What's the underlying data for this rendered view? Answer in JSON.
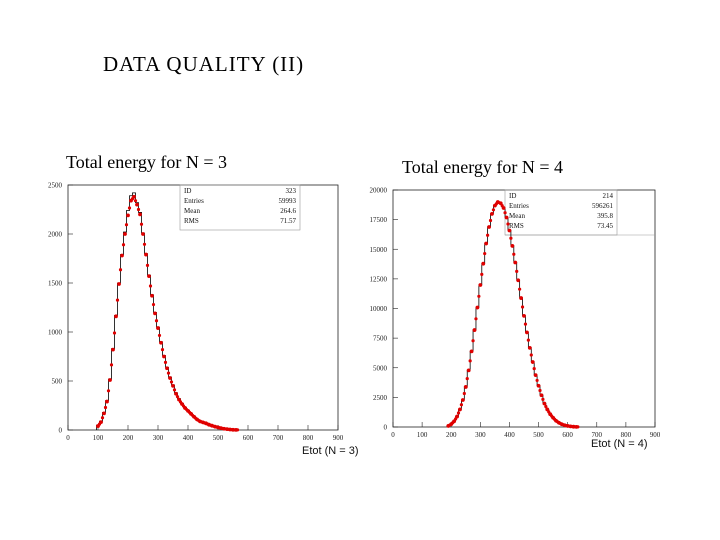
{
  "page": {
    "title": "DATA QUALITY (II)"
  },
  "panels": [
    {
      "title": "Total energy for N = 3",
      "xlabel": "Etot (N = 3)"
    },
    {
      "title": "Total energy for N = 4",
      "xlabel": "Etot (N = 4)"
    }
  ],
  "chart_data": [
    {
      "type": "histogram",
      "title": "Total energy for N = 3",
      "xlabel": "Etot (N = 3)",
      "ylabel": "",
      "xlim": [
        0,
        900
      ],
      "ylim": [
        0,
        2500
      ],
      "x_ticks": [
        0,
        100,
        200,
        300,
        400,
        500,
        600,
        700,
        800,
        900
      ],
      "y_ticks": [
        0,
        500,
        1000,
        1500,
        2000,
        2500
      ],
      "x_tick_labels": [
        "0",
        "100",
        "200",
        "300",
        "400",
        "500",
        "600",
        "700",
        "800",
        "900"
      ],
      "y_tick_labels": [
        "0",
        "500",
        "1000",
        "1500",
        "2000",
        "2500"
      ],
      "stats": [
        {
          "label": "ID",
          "value": "323"
        },
        {
          "label": "Entries",
          "value": "59993"
        },
        {
          "label": "Mean",
          "value": "264.6"
        },
        {
          "label": "RMS",
          "value": "71.57"
        }
      ],
      "series": [
        {
          "style": "histogram-line",
          "color": "#000000",
          "x": [
            100,
            110,
            120,
            130,
            140,
            150,
            160,
            170,
            180,
            190,
            200,
            210,
            220,
            230,
            240,
            250,
            260,
            270,
            280,
            290,
            300,
            310,
            320,
            330,
            340,
            350,
            360,
            370,
            380,
            390,
            400,
            410,
            420,
            430,
            440,
            450,
            460,
            470,
            480,
            490,
            500,
            510,
            520,
            530,
            540,
            550,
            560
          ],
          "values": [
            50,
            90,
            180,
            300,
            520,
            830,
            1170,
            1500,
            1790,
            2020,
            2240,
            2390,
            2420,
            2320,
            2220,
            2010,
            1800,
            1580,
            1380,
            1200,
            1050,
            900,
            760,
            640,
            540,
            460,
            380,
            320,
            270,
            230,
            200,
            170,
            140,
            110,
            90,
            80,
            70,
            55,
            45,
            35,
            28,
            20,
            14,
            10,
            6,
            3,
            1
          ]
        },
        {
          "style": "markers",
          "color": "#e00000",
          "x": [
            100,
            110,
            120,
            130,
            140,
            150,
            160,
            170,
            180,
            190,
            200,
            210,
            220,
            230,
            240,
            250,
            260,
            270,
            280,
            290,
            300,
            310,
            320,
            330,
            340,
            350,
            360,
            370,
            380,
            390,
            400,
            410,
            420,
            430,
            440,
            450,
            460,
            470,
            480,
            490,
            500,
            510,
            520,
            530,
            540,
            550,
            560
          ],
          "values": [
            40,
            80,
            170,
            290,
            510,
            820,
            1160,
            1490,
            1780,
            2000,
            2190,
            2340,
            2380,
            2300,
            2200,
            2000,
            1790,
            1570,
            1370,
            1190,
            1040,
            890,
            750,
            630,
            530,
            450,
            370,
            310,
            265,
            225,
            195,
            165,
            135,
            108,
            88,
            78,
            68,
            54,
            44,
            34,
            27,
            19,
            13,
            9,
            5,
            2,
            1
          ]
        }
      ]
    },
    {
      "type": "histogram",
      "title": "Total energy for N = 4",
      "xlabel": "Etot (N = 4)",
      "ylabel": "",
      "xlim": [
        0,
        900
      ],
      "ylim": [
        0,
        20000
      ],
      "x_ticks": [
        0,
        100,
        200,
        300,
        400,
        500,
        600,
        700,
        800,
        900
      ],
      "y_ticks": [
        0,
        2500,
        5000,
        7500,
        10000,
        12500,
        15000,
        17500,
        20000
      ],
      "x_tick_labels": [
        "0",
        "100",
        "200",
        "300",
        "400",
        "500",
        "600",
        "700",
        "800",
        "900"
      ],
      "y_tick_labels": [
        "0",
        "2500",
        "5000",
        "7500",
        "10000",
        "12500",
        "15000",
        "17500",
        "20000"
      ],
      "stats": [
        {
          "label": "ID",
          "value": "214"
        },
        {
          "label": "Entries",
          "value": "596261"
        },
        {
          "label": "Mean",
          "value": "395.8"
        },
        {
          "label": "RMS",
          "value": "73.45"
        }
      ],
      "series": [
        {
          "style": "histogram-line",
          "color": "#000000",
          "x": [
            190,
            200,
            210,
            220,
            230,
            240,
            250,
            260,
            270,
            280,
            290,
            300,
            310,
            320,
            330,
            340,
            350,
            360,
            370,
            380,
            390,
            400,
            410,
            420,
            430,
            440,
            450,
            460,
            470,
            480,
            490,
            500,
            510,
            520,
            530,
            540,
            550,
            560,
            570,
            580,
            590,
            600,
            610,
            620,
            630
          ],
          "values": [
            100,
            250,
            500,
            900,
            1500,
            2300,
            3400,
            4800,
            6400,
            8200,
            10100,
            12000,
            13800,
            15500,
            16900,
            18000,
            18700,
            19000,
            18900,
            18500,
            17700,
            16600,
            15300,
            13900,
            12400,
            10900,
            9400,
            8000,
            6700,
            5500,
            4400,
            3500,
            2700,
            2000,
            1500,
            1100,
            800,
            550,
            380,
            250,
            160,
            100,
            60,
            30,
            10
          ]
        },
        {
          "style": "markers",
          "color": "#e00000",
          "x": [
            190,
            200,
            210,
            220,
            230,
            240,
            250,
            260,
            270,
            280,
            290,
            300,
            310,
            320,
            330,
            340,
            350,
            360,
            370,
            380,
            390,
            400,
            410,
            420,
            430,
            440,
            450,
            460,
            470,
            480,
            490,
            500,
            510,
            520,
            530,
            540,
            550,
            560,
            570,
            580,
            590,
            600,
            610,
            620,
            630
          ],
          "values": [
            90,
            240,
            480,
            880,
            1480,
            2280,
            3380,
            4780,
            6380,
            8180,
            10080,
            11980,
            13780,
            15480,
            16880,
            17980,
            18680,
            18980,
            18880,
            18480,
            17680,
            16580,
            15280,
            13880,
            12380,
            10880,
            9380,
            7980,
            6680,
            5480,
            4380,
            3480,
            2680,
            1980,
            1480,
            1080,
            780,
            530,
            360,
            230,
            150,
            90,
            50,
            25,
            8
          ]
        }
      ]
    }
  ]
}
